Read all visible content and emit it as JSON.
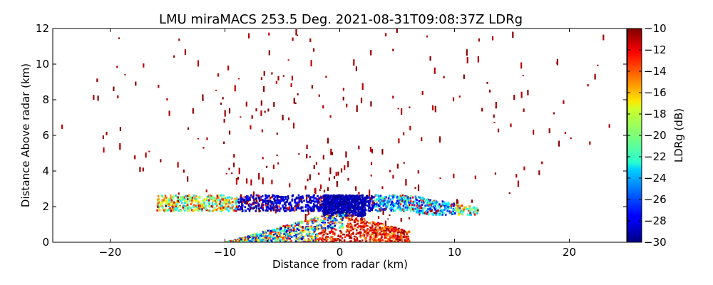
{
  "chart_data": {
    "type": "heatmap",
    "title": "LMU miraMACS 253.5 Deg. 2021-08-31T09:08:37Z  LDRg",
    "xlabel": "Distance from radar (km)",
    "ylabel": "Distance Above radar  (km)",
    "xlim": [
      -25,
      25
    ],
    "ylim": [
      0,
      12
    ],
    "x_ticks": [
      -20,
      -10,
      0,
      10,
      20
    ],
    "x_tick_labels": [
      "−20",
      "−10",
      "0",
      "10",
      "20"
    ],
    "y_ticks": [
      0,
      2,
      4,
      6,
      8,
      10,
      12
    ],
    "y_tick_labels": [
      "0",
      "2",
      "4",
      "6",
      "8",
      "10",
      "12"
    ],
    "colorbar": {
      "label": "LDRg (dB)",
      "range": [
        -30,
        -10
      ],
      "ticks": [
        -10,
        -12,
        -14,
        -16,
        -18,
        -20,
        -22,
        -24,
        -26,
        -28,
        -30
      ],
      "tick_labels": [
        "−10",
        "−12",
        "−14",
        "−16",
        "−18",
        "−20",
        "−22",
        "−24",
        "−26",
        "−28",
        "−30"
      ],
      "colormap": "jet"
    },
    "features": {
      "noise_speckle_ldr_db": -10,
      "layer_top_km": 2.7,
      "layer_extent_km": [
        -16,
        12
      ]
    }
  }
}
